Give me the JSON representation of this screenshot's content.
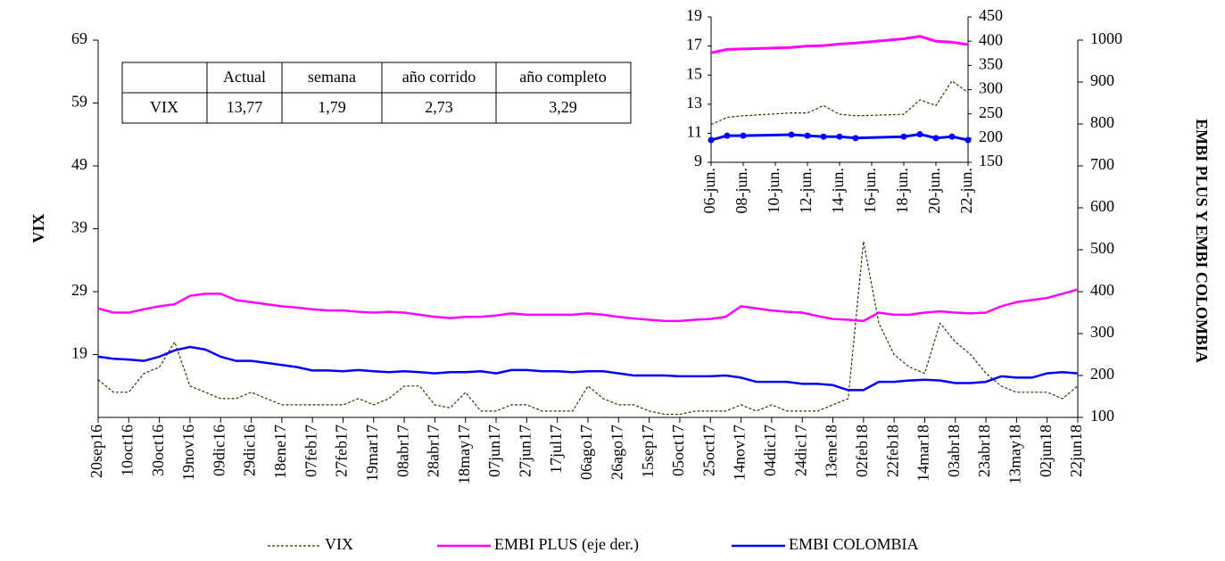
{
  "chart_data": [
    {
      "type": "line",
      "ylabel": "VIX",
      "y2label": "EMBI PLUS Y EMBI COLOMBIA",
      "categories": [
        "20sep16",
        null,
        "10oct16",
        null,
        "30oct16",
        null,
        "19nov16",
        null,
        "09dic16",
        null,
        "29dic16",
        null,
        "18ene17",
        null,
        "07feb17",
        null,
        "27feb17",
        null,
        "19mar17",
        null,
        "08abr17",
        null,
        "28abr17",
        null,
        "18may17",
        null,
        "07jun17",
        null,
        "27jun17",
        null,
        "17jul17",
        null,
        "06ago17",
        null,
        "26ago17",
        null,
        "15sep17",
        null,
        "05oct17",
        null,
        "25oct17",
        null,
        "14nov17",
        null,
        "04dic17",
        null,
        "24dic17",
        null,
        "13ene18",
        null,
        "02feb18",
        null,
        "22feb18",
        null,
        "14mar18",
        null,
        "03abr18",
        null,
        "23abr18",
        null,
        "13may18",
        null,
        "02jun18",
        null,
        "22jun18"
      ],
      "ylim": [
        9,
        69
      ],
      "yticks": [
        19,
        29,
        39,
        49,
        59,
        69
      ],
      "y2lim": [
        100,
        1000
      ],
      "y2ticks": [
        100,
        200,
        300,
        400,
        500,
        600,
        700,
        800,
        900,
        1000
      ],
      "legend": "bottom",
      "series": [
        {
          "name": "VIX",
          "color": "#333300",
          "style": "dashed",
          "axis": "y",
          "values": [
            15,
            13,
            13,
            16,
            17,
            21,
            14,
            13,
            12,
            12,
            13,
            12,
            11,
            11,
            11,
            11,
            11,
            12,
            11,
            12,
            14,
            14,
            11,
            10.5,
            13,
            10,
            10,
            11,
            11,
            10,
            10,
            10,
            14,
            12,
            11,
            11,
            10,
            9.5,
            9.5,
            10,
            10,
            10,
            11,
            10,
            11,
            10,
            10,
            10,
            11,
            12,
            37,
            24,
            19,
            17,
            16,
            24,
            21,
            19,
            16,
            14,
            13,
            13,
            13,
            12,
            14
          ]
        },
        {
          "name": "EMBI PLUS (eje der.)",
          "color": "#ff00ff",
          "style": "solid",
          "axis": "y2",
          "values": [
            360,
            350,
            350,
            358,
            365,
            370,
            390,
            395,
            395,
            380,
            375,
            370,
            365,
            362,
            358,
            355,
            355,
            352,
            350,
            352,
            350,
            345,
            340,
            337,
            340,
            340,
            343,
            348,
            345,
            345,
            345,
            345,
            348,
            345,
            340,
            336,
            333,
            330,
            330,
            333,
            335,
            340,
            365,
            360,
            355,
            352,
            350,
            342,
            335,
            333,
            330,
            350,
            345,
            345,
            350,
            353,
            350,
            348,
            350,
            365,
            375,
            380,
            385,
            395,
            405
          ]
        },
        {
          "name": "EMBI COLOMBIA",
          "color": "#0000ff",
          "style": "solid",
          "axis": "y2",
          "values": [
            245,
            240,
            238,
            235,
            245,
            260,
            268,
            262,
            245,
            235,
            235,
            230,
            225,
            220,
            212,
            212,
            210,
            213,
            210,
            208,
            210,
            208,
            205,
            208,
            208,
            210,
            205,
            213,
            213,
            210,
            210,
            208,
            210,
            210,
            205,
            200,
            200,
            200,
            198,
            198,
            198,
            200,
            195,
            185,
            185,
            185,
            180,
            180,
            177,
            165,
            165,
            185,
            185,
            188,
            190,
            188,
            182,
            182,
            185,
            198,
            195,
            195,
            205,
            208,
            205
          ]
        }
      ]
    },
    {
      "type": "line",
      "x": [
        6,
        7,
        8,
        11,
        12,
        13,
        14,
        15,
        18,
        19,
        20,
        21,
        22
      ],
      "xlim": [
        6,
        22
      ],
      "xticks": [
        {
          "value": 6,
          "label": "06-jun."
        },
        {
          "value": 8,
          "label": "08-jun."
        },
        {
          "value": 10,
          "label": "10-jun."
        },
        {
          "value": 12,
          "label": "12-jun."
        },
        {
          "value": 14,
          "label": "14-jun."
        },
        {
          "value": 16,
          "label": "16-jun."
        },
        {
          "value": 18,
          "label": "18-jun."
        },
        {
          "value": 20,
          "label": "20-jun."
        },
        {
          "value": 22,
          "label": "22-jun."
        }
      ],
      "ylim": [
        9,
        19
      ],
      "yticks": [
        9,
        11,
        13,
        15,
        17,
        19
      ],
      "y2lim": [
        150,
        450
      ],
      "y2ticks": [
        150,
        200,
        250,
        300,
        350,
        400,
        450
      ],
      "series": [
        {
          "color": "#333300",
          "style": "dashed",
          "axis": "y",
          "values": [
            11.6,
            12.1,
            12.2,
            12.4,
            12.4,
            12.9,
            12.3,
            12.2,
            12.3,
            13.3,
            12.9,
            14.6,
            13.8
          ]
        },
        {
          "color": "#ff00ff",
          "style": "solid",
          "axis": "y2",
          "values": [
            376,
            383,
            384,
            387,
            390,
            391,
            394,
            396,
            405,
            410,
            400,
            398,
            393
          ]
        },
        {
          "color": "#0000ff",
          "style": "solid",
          "axis": "y2",
          "marker": "circle",
          "values": [
            196,
            205,
            205,
            207,
            205,
            203,
            203,
            200,
            203,
            208,
            200,
            203,
            196
          ]
        }
      ]
    }
  ],
  "table": {
    "columns": [
      "Actual",
      "semana",
      "año corrido",
      "año completo"
    ],
    "rows": [
      {
        "label": "VIX",
        "values": [
          "13,77",
          "1,79",
          "2,73",
          "3,29"
        ]
      }
    ]
  }
}
